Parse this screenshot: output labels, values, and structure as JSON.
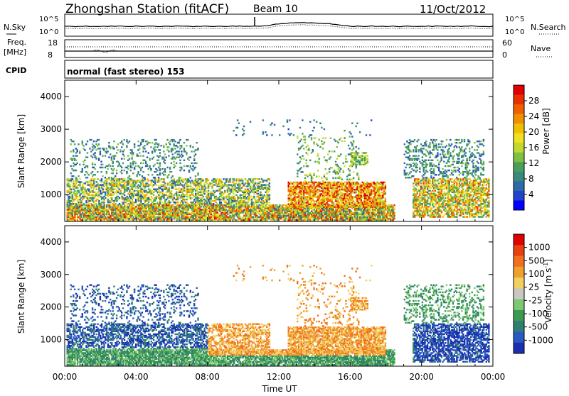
{
  "header": {
    "station": "Zhongshan Station (fitACF)",
    "beam": "Beam 10",
    "date": "11/Oct/2012"
  },
  "noise_panel": {
    "left_label": "N.Sky",
    "right_label": "N.Search",
    "left_ticks": [
      "10^5",
      "10^0"
    ],
    "right_ticks": [
      "10^5",
      "10^0"
    ]
  },
  "freq_panel": {
    "left_label_1": "Freq.",
    "left_label_2": "[MHz]",
    "right_label": "Nave",
    "left_ticks": [
      "18",
      "8"
    ],
    "right_ticks": [
      "60",
      "0"
    ]
  },
  "cpid_panel": {
    "label": "CPID",
    "text": "normal (fast stereo) 153"
  },
  "chart_data": [
    {
      "type": "heatmap",
      "parameter": "power",
      "ylabel": "Slant Range [km]",
      "ylim": [
        180,
        4500
      ],
      "y_ticks": [
        1000,
        2000,
        3000,
        4000
      ],
      "x_ticks": [
        "00:00",
        "04:00",
        "08:00",
        "12:00",
        "16:00",
        "20:00",
        "00:00"
      ],
      "xlim_hours": [
        0,
        24
      ],
      "colorbar": {
        "label": "Power [dB]",
        "ticks": [
          "28",
          "24",
          "20",
          "16",
          "12",
          "8",
          "4"
        ],
        "tick_values": [
          28,
          24,
          20,
          16,
          12,
          8,
          4
        ],
        "range": [
          0,
          32
        ],
        "colors": [
          "#0000ff",
          "#2244cc",
          "#2f6aa8",
          "#3a8a7a",
          "#4aa05a",
          "#7ec040",
          "#c0d830",
          "#f0e020",
          "#f0c000",
          "#f09000",
          "#f06000",
          "#e83000",
          "#e00000"
        ]
      }
    },
    {
      "type": "heatmap",
      "parameter": "velocity",
      "ylabel": "Slant Range [km]",
      "ylim": [
        180,
        4500
      ],
      "y_ticks": [
        1000,
        2000,
        3000,
        4000
      ],
      "x_ticks": [
        "00:00",
        "04:00",
        "08:00",
        "12:00",
        "16:00",
        "20:00",
        "00:00"
      ],
      "xlabel": "Time UT",
      "xlim_hours": [
        0,
        24
      ],
      "colorbar": {
        "label": "Velocity [m s",
        "label_sup": "-1",
        "label_end": "]",
        "ticks": [
          "1000",
          "500",
          "100",
          "25",
          "-25",
          "-100",
          "-500",
          "-1000"
        ],
        "colors": [
          "#1a2fb0",
          "#2a5ac0",
          "#2f7f70",
          "#3c9a50",
          "#7dc870",
          "#c8c8c0",
          "#f0d060",
          "#f0a030",
          "#f07020",
          "#e84010",
          "#e00000"
        ]
      }
    }
  ],
  "layout": {
    "plot_x0": 91,
    "plot_x1": 693,
    "power_y0": 113,
    "power_y1": 312,
    "vel_y0": 318,
    "vel_y1": 516
  }
}
